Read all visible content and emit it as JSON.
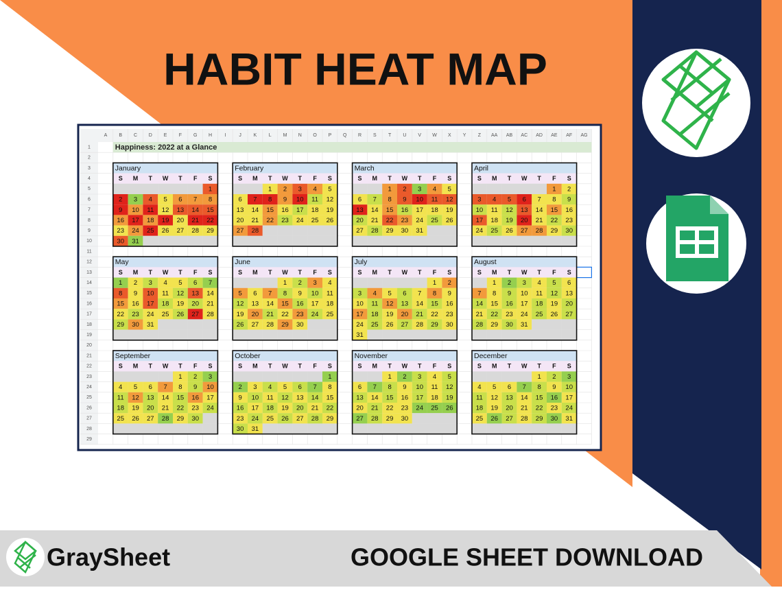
{
  "header": {
    "title": "HABIT HEAT MAP"
  },
  "sheet": {
    "title": "Happiness: 2022 at a Glance",
    "columns": [
      "A",
      "B",
      "C",
      "D",
      "E",
      "F",
      "G",
      "H",
      "I",
      "J",
      "K",
      "L",
      "M",
      "N",
      "O",
      "P",
      "Q",
      "R",
      "S",
      "T",
      "U",
      "V",
      "W",
      "X",
      "Y",
      "Z",
      "AA",
      "AB",
      "AC",
      "AD",
      "AE",
      "AF",
      "AG"
    ],
    "rows": [
      1,
      2,
      3,
      4,
      5,
      6,
      7,
      8,
      9,
      10,
      11,
      12,
      13,
      14,
      15,
      16,
      17,
      18,
      19,
      20,
      21,
      22,
      23,
      24,
      25,
      26,
      27,
      28,
      29
    ],
    "weekdays": [
      "S",
      "M",
      "T",
      "W",
      "T",
      "F",
      "S"
    ],
    "months": [
      {
        "name": "January",
        "weeks": [
          [
            null,
            null,
            null,
            null,
            null,
            null,
            1
          ],
          [
            2,
            3,
            4,
            5,
            6,
            7,
            8
          ],
          [
            9,
            10,
            11,
            12,
            13,
            14,
            15
          ],
          [
            16,
            17,
            18,
            19,
            20,
            21,
            22
          ],
          [
            23,
            24,
            25,
            26,
            27,
            28,
            29
          ],
          [
            30,
            31
          ]
        ],
        "heat": [
          "#ea5a2b",
          "#e0231b",
          "#95cf4f",
          "#ea5a2b",
          "#f2e34f",
          "#f29a3c",
          "#f29a3c",
          "#f29a3c",
          "#e0231b",
          "#f29a3c",
          "#e0231b",
          "#f2e34f",
          "#ea5a2b",
          "#ea5a2b",
          "#ea5a2b",
          "#f29a3c",
          "#e0231b",
          "#f29a3c",
          "#e0231b",
          "#f2e34f",
          "#e0231b",
          "#e0231b",
          "#f2e34f",
          "#f29a3c",
          "#e0231b",
          "#f2e34f",
          "#f2e34f",
          "#f2e34f",
          "#f2e34f",
          "#ea5a2b",
          "#95cf4f"
        ]
      },
      {
        "name": "February",
        "weeks": [
          [
            null,
            null,
            1,
            2,
            3,
            4,
            5
          ],
          [
            6,
            7,
            8,
            9,
            10,
            11,
            12
          ],
          [
            13,
            14,
            15,
            16,
            17,
            18,
            19
          ],
          [
            20,
            21,
            22,
            23,
            24,
            25,
            26
          ],
          [
            27,
            28
          ]
        ],
        "heat": [
          "#f2e34f",
          "#f29a3c",
          "#ea5a2b",
          "#f29a3c",
          "#f2e34f",
          "#f2e34f",
          "#e0231b",
          "#e0231b",
          "#f29a3c",
          "#e0231b",
          "#c9df4b",
          "#f2e34f",
          "#f2e34f",
          "#f2e34f",
          "#f29a3c",
          "#f2e34f",
          "#c9df4b",
          "#f2e34f",
          "#f2e34f",
          "#f2e34f",
          "#f2e34f",
          "#f29a3c",
          "#c9df4b",
          "#f2e34f",
          "#f2e34f",
          "#f2e34f",
          "#f29a3c",
          "#ea5a2b"
        ]
      },
      {
        "name": "March",
        "weeks": [
          [
            null,
            null,
            1,
            2,
            3,
            4,
            5
          ],
          [
            6,
            7,
            8,
            9,
            10,
            11,
            12
          ],
          [
            13,
            14,
            15,
            16,
            17,
            18,
            19
          ],
          [
            20,
            21,
            22,
            23,
            24,
            25,
            26
          ],
          [
            27,
            28,
            29,
            30,
            31
          ]
        ],
        "heat": [
          "#f29a3c",
          "#ea5a2b",
          "#95cf4f",
          "#f29a3c",
          "#f2e34f",
          "#f2e34f",
          "#c9df4b",
          "#f29a3c",
          "#ea5a2b",
          "#e0231b",
          "#ea5a2b",
          "#ea5a2b",
          "#e0231b",
          "#f2e34f",
          "#f29a3c",
          "#c9df4b",
          "#f2e34f",
          "#f2e34f",
          "#f2e34f",
          "#c9df4b",
          "#f2e34f",
          "#ea5a2b",
          "#f29a3c",
          "#f2e34f",
          "#c9df4b",
          "#f2e34f",
          "#f2e34f",
          "#c9df4b",
          "#f2e34f",
          "#f2e34f",
          "#f2e34f"
        ]
      },
      {
        "name": "April",
        "weeks": [
          [
            null,
            null,
            null,
            null,
            null,
            1,
            2
          ],
          [
            3,
            4,
            5,
            6,
            7,
            8,
            9
          ],
          [
            10,
            11,
            12,
            13,
            14,
            15,
            16
          ],
          [
            17,
            18,
            19,
            20,
            21,
            22,
            23
          ],
          [
            24,
            25,
            26,
            27,
            28,
            29,
            30
          ]
        ],
        "heat": [
          "#f29a3c",
          "#f2e34f",
          "#ea5a2b",
          "#ea5a2b",
          "#ea5a2b",
          "#e0231b",
          "#f2e34f",
          "#f2e34f",
          "#c9df4b",
          "#c9df4b",
          "#f2e34f",
          "#c9df4b",
          "#ea5a2b",
          "#f2e34f",
          "#f29a3c",
          "#f2e34f",
          "#ea5a2b",
          "#f2e34f",
          "#c9df4b",
          "#e0231b",
          "#f2e34f",
          "#c9df4b",
          "#f2e34f",
          "#f2e34f",
          "#c9df4b",
          "#f2e34f",
          "#f29a3c",
          "#f29a3c",
          "#f2e34f",
          "#c9df4b"
        ]
      },
      {
        "name": "May",
        "weeks": [
          [
            1,
            2,
            3,
            4,
            5,
            6,
            7
          ],
          [
            8,
            9,
            10,
            11,
            12,
            13,
            14
          ],
          [
            15,
            16,
            17,
            18,
            19,
            20,
            21
          ],
          [
            22,
            23,
            24,
            25,
            26,
            27,
            28
          ],
          [
            29,
            30,
            31
          ]
        ],
        "heat": [
          "#95cf4f",
          "#f2e34f",
          "#c9df4b",
          "#f2e34f",
          "#f2e34f",
          "#c9df4b",
          "#95cf4f",
          "#ea5a2b",
          "#f2e34f",
          "#ea5a2b",
          "#f2e34f",
          "#c9df4b",
          "#ea5a2b",
          "#f2e34f",
          "#f29a3c",
          "#f2e34f",
          "#ea5a2b",
          "#c9df4b",
          "#f2e34f",
          "#c9df4b",
          "#f2e34f",
          "#f2e34f",
          "#c9df4b",
          "#f2e34f",
          "#f2e34f",
          "#c9df4b",
          "#e0231b",
          "#f2e34f",
          "#c9df4b",
          "#f29a3c",
          "#f2e34f"
        ]
      },
      {
        "name": "June",
        "weeks": [
          [
            null,
            null,
            null,
            1,
            2,
            3,
            4
          ],
          [
            5,
            6,
            7,
            8,
            9,
            10,
            11
          ],
          [
            12,
            13,
            14,
            15,
            16,
            17,
            18
          ],
          [
            19,
            20,
            21,
            22,
            23,
            24,
            25
          ],
          [
            26,
            27,
            28,
            29,
            30
          ]
        ],
        "heat": [
          "#f2e34f",
          "#c9df4b",
          "#f29a3c",
          "#f2e34f",
          "#f29a3c",
          "#f2e34f",
          "#f29a3c",
          "#c9df4b",
          "#f2e34f",
          "#c9df4b",
          "#f2e34f",
          "#c9df4b",
          "#f2e34f",
          "#f2e34f",
          "#f29a3c",
          "#c9df4b",
          "#f2e34f",
          "#f2e34f",
          "#f2e34f",
          "#f29a3c",
          "#c9df4b",
          "#f2e34f",
          "#f29a3c",
          "#c9df4b",
          "#f2e34f",
          "#c9df4b",
          "#f2e34f",
          "#f2e34f",
          "#f29a3c",
          "#f2e34f"
        ]
      },
      {
        "name": "July",
        "weeks": [
          [
            null,
            null,
            null,
            null,
            null,
            1,
            2
          ],
          [
            3,
            4,
            5,
            6,
            7,
            8,
            9
          ],
          [
            10,
            11,
            12,
            13,
            14,
            15,
            16
          ],
          [
            17,
            18,
            19,
            20,
            21,
            22,
            23
          ],
          [
            24,
            25,
            26,
            27,
            28,
            29,
            30
          ],
          [
            31
          ]
        ],
        "heat": [
          "#f2e34f",
          "#f29a3c",
          "#c9df4b",
          "#f29a3c",
          "#f2e34f",
          "#c9df4b",
          "#f2e34f",
          "#f29a3c",
          "#f2e34f",
          "#f2e34f",
          "#c9df4b",
          "#f29a3c",
          "#c9df4b",
          "#f2e34f",
          "#c9df4b",
          "#f2e34f",
          "#f29a3c",
          "#c9df4b",
          "#f2e34f",
          "#f29a3c",
          "#c9df4b",
          "#f2e34f",
          "#f2e34f",
          "#f2e34f",
          "#c9df4b",
          "#f2e34f",
          "#c9df4b",
          "#f2e34f",
          "#c9df4b",
          "#f2e34f",
          "#f2e34f"
        ]
      },
      {
        "name": "August",
        "weeks": [
          [
            null,
            1,
            2,
            3,
            4,
            5,
            6
          ],
          [
            7,
            8,
            9,
            10,
            11,
            12,
            13
          ],
          [
            14,
            15,
            16,
            17,
            18,
            19,
            20
          ],
          [
            21,
            22,
            23,
            24,
            25,
            26,
            27
          ],
          [
            28,
            29,
            30,
            31
          ]
        ],
        "heat": [
          "#f2e34f",
          "#95cf4f",
          "#c9df4b",
          "#f2e34f",
          "#c9df4b",
          "#f2e34f",
          "#f29a3c",
          "#f2e34f",
          "#c9df4b",
          "#f2e34f",
          "#f2e34f",
          "#c9df4b",
          "#f2e34f",
          "#c9df4b",
          "#f2e34f",
          "#c9df4b",
          "#f2e34f",
          "#c9df4b",
          "#f2e34f",
          "#c9df4b",
          "#f2e34f",
          "#c9df4b",
          "#f2e34f",
          "#f2e34f",
          "#c9df4b",
          "#f2e34f",
          "#c9df4b",
          "#c9df4b",
          "#f2e34f",
          "#c9df4b",
          "#f2e34f"
        ]
      },
      {
        "name": "September",
        "weeks": [
          [
            null,
            null,
            null,
            null,
            1,
            2,
            3
          ],
          [
            4,
            5,
            6,
            7,
            8,
            9,
            10
          ],
          [
            11,
            12,
            13,
            14,
            15,
            16,
            17
          ],
          [
            18,
            19,
            20,
            21,
            22,
            23,
            24
          ],
          [
            25,
            26,
            27,
            28,
            29,
            30
          ]
        ],
        "heat": [
          "#f2e34f",
          "#c9df4b",
          "#95cf4f",
          "#f2e34f",
          "#f2e34f",
          "#f2e34f",
          "#f29a3c",
          "#f2e34f",
          "#c9df4b",
          "#f29a3c",
          "#c9df4b",
          "#f29a3c",
          "#c9df4b",
          "#f2e34f",
          "#c9df4b",
          "#f29a3c",
          "#f2e34f",
          "#c9df4b",
          "#f2e34f",
          "#c9df4b",
          "#f2e34f",
          "#c9df4b",
          "#f2e34f",
          "#c9df4b",
          "#f2e34f",
          "#f2e34f",
          "#f2e34f",
          "#95cf4f",
          "#f2e34f",
          "#c9df4b"
        ]
      },
      {
        "name": "October",
        "weeks": [
          [
            null,
            null,
            null,
            null,
            null,
            null,
            1
          ],
          [
            2,
            3,
            4,
            5,
            6,
            7,
            8
          ],
          [
            9,
            10,
            11,
            12,
            13,
            14,
            15
          ],
          [
            16,
            17,
            18,
            19,
            20,
            21,
            22
          ],
          [
            23,
            24,
            25,
            26,
            27,
            28,
            29
          ],
          [
            30,
            31
          ]
        ],
        "heat": [
          "#95cf4f",
          "#95cf4f",
          "#f2e34f",
          "#c9df4b",
          "#f2e34f",
          "#c9df4b",
          "#95cf4f",
          "#f2e34f",
          "#f2e34f",
          "#c9df4b",
          "#f2e34f",
          "#c9df4b",
          "#f2e34f",
          "#c9df4b",
          "#f2e34f",
          "#c9df4b",
          "#f2e34f",
          "#c9df4b",
          "#f2e34f",
          "#c9df4b",
          "#f2e34f",
          "#c9df4b",
          "#f2e34f",
          "#c9df4b",
          "#f2e34f",
          "#c9df4b",
          "#f2e34f",
          "#c9df4b",
          "#f2e34f",
          "#c9df4b",
          "#f2e34f"
        ]
      },
      {
        "name": "November",
        "weeks": [
          [
            null,
            null,
            1,
            2,
            3,
            4,
            5
          ],
          [
            6,
            7,
            8,
            9,
            10,
            11,
            12
          ],
          [
            13,
            14,
            15,
            16,
            17,
            18,
            19
          ],
          [
            20,
            21,
            22,
            23,
            24,
            25,
            26
          ],
          [
            27,
            28,
            29,
            30
          ]
        ],
        "heat": [
          "#f2e34f",
          "#95cf4f",
          "#c9df4b",
          "#f2e34f",
          "#c9df4b",
          "#f2e34f",
          "#95cf4f",
          "#c9df4b",
          "#f2e34f",
          "#c9df4b",
          "#f2e34f",
          "#c9df4b",
          "#c9df4b",
          "#f2e34f",
          "#c9df4b",
          "#f2e34f",
          "#c9df4b",
          "#f2e34f",
          "#c9df4b",
          "#f2e34f",
          "#c9df4b",
          "#f2e34f",
          "#f2e34f",
          "#95cf4f",
          "#95cf4f",
          "#95cf4f",
          "#95cf4f",
          "#c9df4b",
          "#f2e34f",
          "#f2e34f"
        ]
      },
      {
        "name": "December",
        "weeks": [
          [
            null,
            null,
            null,
            null,
            1,
            2,
            3
          ],
          [
            4,
            5,
            6,
            7,
            8,
            9,
            10
          ],
          [
            11,
            12,
            13,
            14,
            15,
            16,
            17
          ],
          [
            18,
            19,
            20,
            21,
            22,
            23,
            24
          ],
          [
            25,
            26,
            27,
            28,
            29,
            30,
            31
          ]
        ],
        "heat": [
          "#f2e34f",
          "#c9df4b",
          "#95cf4f",
          "#f2e34f",
          "#f2e34f",
          "#f2e34f",
          "#95cf4f",
          "#c9df4b",
          "#f2e34f",
          "#c9df4b",
          "#c9df4b",
          "#f2e34f",
          "#c9df4b",
          "#f2e34f",
          "#c9df4b",
          "#95cf4f",
          "#f2e34f",
          "#c9df4b",
          "#f2e34f",
          "#c9df4b",
          "#f2e34f",
          "#c9df4b",
          "#f2e34f",
          "#c9df4b",
          "#f2e34f",
          "#95cf4f",
          "#c9df4b",
          "#f2e34f",
          "#c9df4b",
          "#95cf4f",
          "#f2e34f"
        ]
      }
    ]
  },
  "footer": {
    "brand": "GraySheet",
    "cta": "GOOGLE SHEET DOWNLOAD"
  }
}
